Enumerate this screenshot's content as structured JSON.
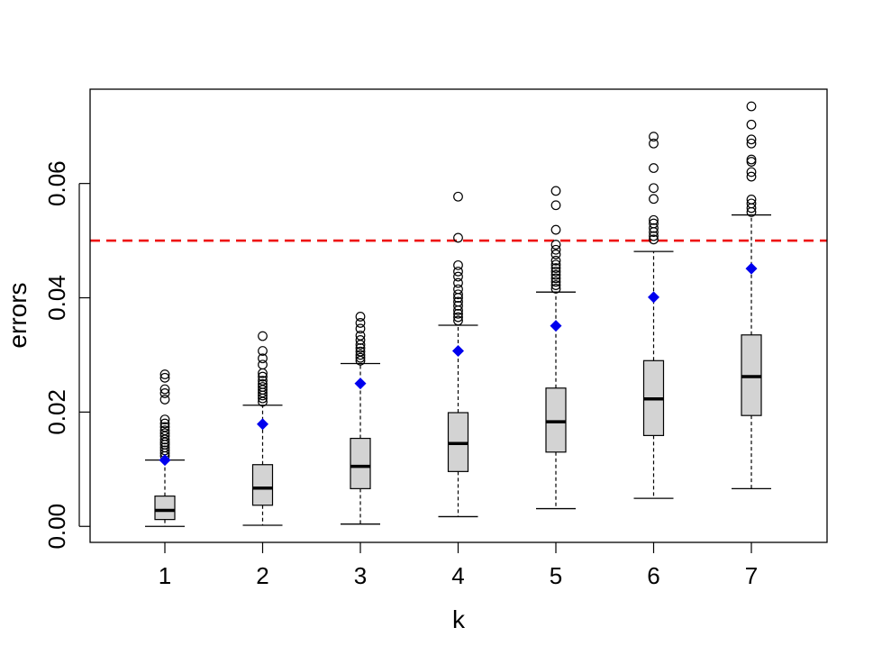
{
  "chart_data": {
    "type": "boxplot",
    "title": "",
    "xlabel": "k",
    "ylabel": "errors",
    "categories": [
      "1",
      "2",
      "3",
      "4",
      "5",
      "6",
      "7"
    ],
    "ylim": [
      -0.0028,
      0.0765
    ],
    "yticks": [
      "0.00",
      "0.02",
      "0.04",
      "0.06"
    ],
    "ytick_values": [
      0.0,
      0.02,
      0.04,
      0.06
    ],
    "reference_line": {
      "y": 0.05,
      "color": "#ee1111",
      "style": "dashed"
    },
    "box_fill": "#d3d3d3",
    "mean_marker_color": "#0000ee",
    "boxes": [
      {
        "k": "1",
        "whisker_low": 0.0,
        "q1": 0.0012,
        "median": 0.0028,
        "q3": 0.0053,
        "whisker_high": 0.0116,
        "mean": 0.0116,
        "outliers": [
          0.0123,
          0.0128,
          0.0133,
          0.0138,
          0.0143,
          0.0147,
          0.0152,
          0.0158,
          0.0163,
          0.0168,
          0.0174,
          0.018,
          0.0187,
          0.0222,
          0.0233,
          0.024,
          0.026,
          0.0266
        ]
      },
      {
        "k": "2",
        "whisker_low": 0.0002,
        "q1": 0.0037,
        "median": 0.0067,
        "q3": 0.0108,
        "whisker_high": 0.0212,
        "mean": 0.0179,
        "outliers": [
          0.0218,
          0.0224,
          0.0229,
          0.0234,
          0.0239,
          0.0244,
          0.0249,
          0.0255,
          0.0262,
          0.0268,
          0.0283,
          0.0294,
          0.0307,
          0.0333
        ]
      },
      {
        "k": "3",
        "whisker_low": 0.0004,
        "q1": 0.0066,
        "median": 0.0105,
        "q3": 0.0154,
        "whisker_high": 0.0285,
        "mean": 0.025,
        "outliers": [
          0.029,
          0.0295,
          0.03,
          0.0306,
          0.0312,
          0.0318,
          0.0326,
          0.0334,
          0.0346,
          0.0356,
          0.0367
        ]
      },
      {
        "k": "4",
        "whisker_low": 0.0017,
        "q1": 0.0096,
        "median": 0.0145,
        "q3": 0.0199,
        "whisker_high": 0.0352,
        "mean": 0.0307,
        "outliers": [
          0.036,
          0.0366,
          0.0372,
          0.0378,
          0.0386,
          0.0393,
          0.04,
          0.0406,
          0.0415,
          0.0426,
          0.0437,
          0.0446,
          0.0457,
          0.0505,
          0.0577
        ]
      },
      {
        "k": "5",
        "whisker_low": 0.0031,
        "q1": 0.013,
        "median": 0.0183,
        "q3": 0.0242,
        "whisker_high": 0.041,
        "mean": 0.0351,
        "outliers": [
          0.0416,
          0.0422,
          0.0428,
          0.0434,
          0.044,
          0.0446,
          0.0452,
          0.0458,
          0.0465,
          0.0476,
          0.0484,
          0.0493,
          0.0519,
          0.0562,
          0.0587
        ]
      },
      {
        "k": "6",
        "whisker_low": 0.0049,
        "q1": 0.0159,
        "median": 0.0223,
        "q3": 0.029,
        "whisker_high": 0.0481,
        "mean": 0.0401,
        "outliers": [
          0.0502,
          0.0508,
          0.0515,
          0.0522,
          0.053,
          0.0536,
          0.0573,
          0.0592,
          0.0627,
          0.067,
          0.0682
        ]
      },
      {
        "k": "7",
        "whisker_low": 0.0066,
        "q1": 0.0194,
        "median": 0.0262,
        "q3": 0.0335,
        "whisker_high": 0.0545,
        "mean": 0.0451,
        "outliers": [
          0.055,
          0.0557,
          0.0565,
          0.0572,
          0.0612,
          0.062,
          0.0638,
          0.0642,
          0.067,
          0.0677,
          0.0703,
          0.0735
        ]
      }
    ]
  }
}
